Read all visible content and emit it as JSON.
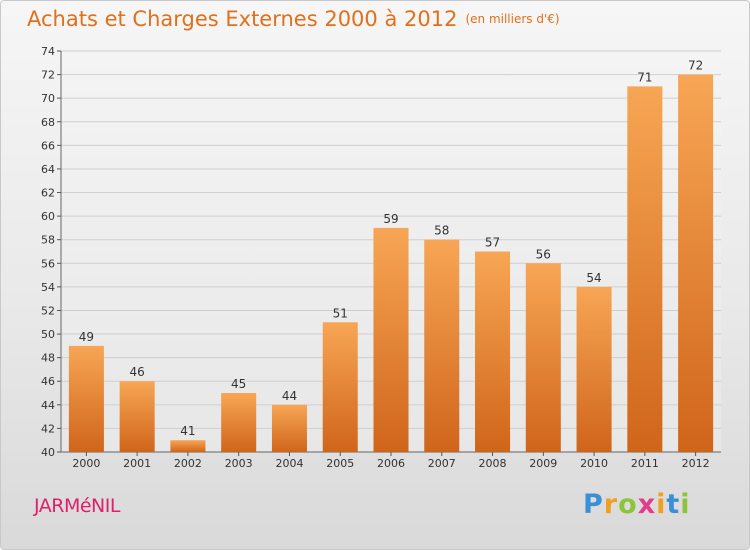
{
  "title": "Achats et Charges Externes 2000 à 2012",
  "unit_label": "(en milliers d'€)",
  "town": "JARMéNIL",
  "brand": {
    "letters": [
      "P",
      "r",
      "o",
      "x",
      "i",
      "t",
      "i"
    ],
    "colors": [
      "#3a8fd6",
      "#f0a020",
      "#8cc43c",
      "#e23c8a",
      "#f0a020",
      "#3a8fd6",
      "#8cc43c"
    ]
  },
  "colors": {
    "title": "#e1701a",
    "town": "#e0206a",
    "bar_light": "#f7a655",
    "bar_dark": "#d0651a"
  },
  "chart_data": {
    "type": "bar",
    "categories": [
      "2000",
      "2001",
      "2002",
      "2003",
      "2004",
      "2005",
      "2006",
      "2007",
      "2008",
      "2009",
      "2010",
      "2011",
      "2012"
    ],
    "values": [
      49,
      46,
      41,
      45,
      44,
      51,
      59,
      58,
      57,
      56,
      54,
      71,
      72
    ],
    "ylim": [
      40,
      74
    ],
    "yticks": [
      40,
      42,
      44,
      46,
      48,
      50,
      52,
      54,
      56,
      58,
      60,
      62,
      64,
      66,
      68,
      70,
      72,
      74
    ],
    "grid": true,
    "title": "Achats et Charges Externes 2000 à 2012",
    "xlabel": "",
    "ylabel": ""
  }
}
